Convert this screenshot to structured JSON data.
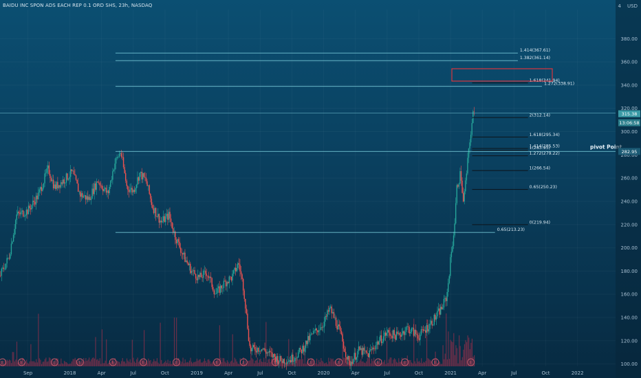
{
  "header": {
    "title": "BAIDU INC SPON ADS EACH REP 0.1 ORD SHS, 23h, NASDAQ",
    "currency": "USD",
    "currency_prefix": "4"
  },
  "colors": {
    "up": "#26a69a",
    "down": "#ef5350",
    "line": "#7fd1e0",
    "fib_line": "#0d1218",
    "box": "#d9363e",
    "volume": "#7b2f4a"
  },
  "chart_data": {
    "type": "candlestick",
    "title": "BAIDU INC SPON ADS EACH REP 0.1 ORD SHS, 23h, NASDAQ",
    "y_ticks": [
      "380.00",
      "360.00",
      "340.00",
      "320.00",
      "300.00",
      "280.00",
      "260.00",
      "240.00",
      "220.00",
      "200.00",
      "180.00",
      "160.00",
      "140.00",
      "120.00",
      "100.00"
    ],
    "y_tick_values": [
      380,
      360,
      340,
      320,
      300,
      280,
      260,
      240,
      220,
      200,
      180,
      160,
      140,
      120,
      100
    ],
    "ylim": [
      98,
      405
    ],
    "x_ticks": [
      "Sep",
      "2018",
      "Apr",
      "Jul",
      "Oct",
      "2019",
      "Apr",
      "Jul",
      "Oct",
      "2020",
      "Apr",
      "Jul",
      "Oct",
      "2021",
      "Apr",
      "Jul",
      "Oct",
      "2022"
    ],
    "x_tick_values": [
      2017.67,
      2018.0,
      2018.25,
      2018.5,
      2018.75,
      2019.0,
      2019.25,
      2019.5,
      2019.75,
      2020.0,
      2020.25,
      2020.5,
      2020.75,
      2021.0,
      2021.25,
      2021.5,
      2021.75,
      2022.0
    ],
    "xlim": [
      2017.45,
      2022.3
    ],
    "price_path": [
      [
        2017.45,
        176
      ],
      [
        2017.52,
        192
      ],
      [
        2017.58,
        228
      ],
      [
        2017.67,
        232
      ],
      [
        2017.75,
        245
      ],
      [
        2017.83,
        268
      ],
      [
        2017.88,
        252
      ],
      [
        2017.95,
        258
      ],
      [
        2018.02,
        265
      ],
      [
        2018.08,
        246
      ],
      [
        2018.15,
        242
      ],
      [
        2018.22,
        258
      ],
      [
        2018.3,
        246
      ],
      [
        2018.35,
        272
      ],
      [
        2018.4,
        283
      ],
      [
        2018.45,
        252
      ],
      [
        2018.5,
        249
      ],
      [
        2018.55,
        264
      ],
      [
        2018.6,
        258
      ],
      [
        2018.65,
        236
      ],
      [
        2018.72,
        222
      ],
      [
        2018.78,
        228
      ],
      [
        2018.83,
        210
      ],
      [
        2018.9,
        192
      ],
      [
        2018.96,
        180
      ],
      [
        2019.02,
        174
      ],
      [
        2019.08,
        179
      ],
      [
        2019.15,
        160
      ],
      [
        2019.22,
        170
      ],
      [
        2019.28,
        175
      ],
      [
        2019.33,
        187
      ],
      [
        2019.37,
        165
      ],
      [
        2019.42,
        112
      ],
      [
        2019.5,
        114
      ],
      [
        2019.58,
        108
      ],
      [
        2019.66,
        103
      ],
      [
        2019.74,
        104
      ],
      [
        2019.82,
        111
      ],
      [
        2019.9,
        124
      ],
      [
        2020.0,
        135
      ],
      [
        2020.05,
        148
      ],
      [
        2020.12,
        130
      ],
      [
        2020.2,
        100
      ],
      [
        2020.28,
        112
      ],
      [
        2020.35,
        108
      ],
      [
        2020.42,
        118
      ],
      [
        2020.5,
        127
      ],
      [
        2020.58,
        124
      ],
      [
        2020.66,
        131
      ],
      [
        2020.75,
        124
      ],
      [
        2020.82,
        132
      ],
      [
        2020.88,
        140
      ],
      [
        2020.93,
        148
      ],
      [
        2020.97,
        158
      ],
      [
        2021.0,
        190
      ],
      [
        2021.03,
        218
      ],
      [
        2021.05,
        252
      ],
      [
        2021.08,
        265
      ],
      [
        2021.1,
        238
      ],
      [
        2021.12,
        258
      ],
      [
        2021.14,
        280
      ],
      [
        2021.16,
        300
      ],
      [
        2021.18,
        317
      ],
      [
        2021.19,
        315.3
      ]
    ],
    "horizontal_lines": [
      {
        "value": 367.61,
        "x_start": 2018.36,
        "x_end": 2021.53,
        "label": "1.414(367.61)"
      },
      {
        "value": 361.14,
        "x_start": 2018.36,
        "x_end": 2021.53,
        "label": "1.382(361.14)"
      },
      {
        "value": 338.91,
        "x_start": 2018.36,
        "x_end": 2021.72,
        "label": "1.272(338.91)"
      },
      {
        "value": 282.95,
        "x_start": 2018.36,
        "x_end": 2022.3,
        "label": ""
      },
      {
        "value": 213.23,
        "x_start": 2018.36,
        "x_end": 2021.35,
        "label": "0.65(213.23)"
      },
      {
        "value": 316.0,
        "x_start": 2017.45,
        "x_end": 2022.3,
        "label": ""
      }
    ],
    "fib_levels": [
      {
        "value": 341.94,
        "label": "1.618(341.94)"
      },
      {
        "value": 312.14,
        "label": "2(312.14)"
      },
      {
        "value": 295.34,
        "label": "1.618(295.34)"
      },
      {
        "value": 285.53,
        "label": "1.414(285.53)"
      },
      {
        "value": 283.95,
        "label": "1(283.95)"
      },
      {
        "value": 279.22,
        "label": "1.272(279.22)"
      },
      {
        "value": 266.54,
        "label": "1(266.54)"
      },
      {
        "value": 250.23,
        "label": "0.65(250.23)"
      },
      {
        "value": 219.94,
        "label": "0(219.94)"
      }
    ],
    "right_labels": [
      {
        "value": 315.38,
        "text": "315.38"
      },
      {
        "value": 310.0,
        "text": "13:06:58"
      },
      {
        "value": 282.95,
        "text": "282.95"
      }
    ],
    "annotation": {
      "text": "pivot Point",
      "value": 283.5
    },
    "events": [
      2017.47,
      2017.62,
      2017.88,
      2018.08,
      2018.34,
      2018.58,
      2018.84,
      2019.16,
      2019.37,
      2019.62,
      2019.9,
      2020.12,
      2020.43,
      2020.64,
      2020.88,
      2021.16
    ]
  }
}
